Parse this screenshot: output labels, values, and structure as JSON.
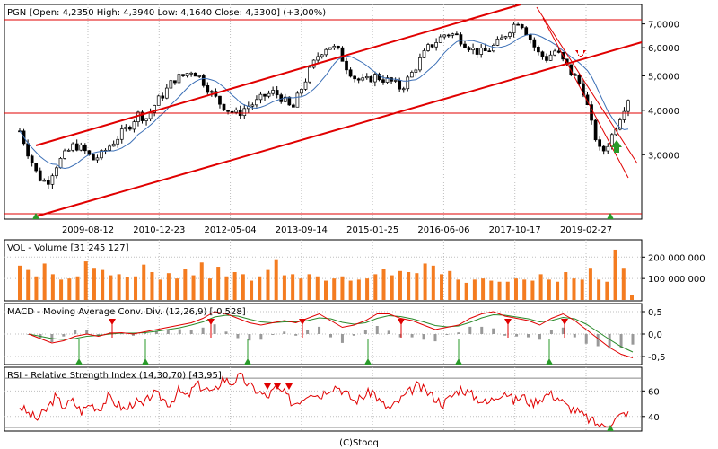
{
  "footer": "(C)Stooq",
  "colors": {
    "price_up": "#ffffff",
    "price_down": "#000000",
    "channel": "#e00000",
    "ma": "#3b6fb6",
    "volume": "#f47c20",
    "macd_line": "#e00000",
    "signal_line": "#2a8a2a",
    "hist": "#999999",
    "rsi": "#e00000",
    "buy_marker": "#2a9a2a",
    "sell_marker": "#e00000",
    "grid": "#bfbfbf"
  },
  "chart_data": [
    {
      "type": "candlestick",
      "title": "PGN [Open: 4,2350  High: 4,3940  Low: 4,1640  Close: 4,3300] (+3,00%)",
      "x_ticks": [
        "2009-08-12",
        "2010-12-23",
        "2012-05-04",
        "2013-09-14",
        "2015-01-25",
        "2016-06-06",
        "2017-10-17",
        "2019-02-27"
      ],
      "y_ticks": [
        "7,0000",
        "6,0000",
        "5,0000",
        "4,0000",
        "3,0000"
      ],
      "y_scale": "log",
      "ylim": [
        2.0,
        7.8
      ],
      "close_series": [
        3.5,
        3.0,
        2.6,
        2.5,
        2.8,
        3.0,
        3.2,
        3.1,
        2.9,
        3.0,
        3.2,
        3.4,
        3.6,
        3.9,
        3.8,
        4.2,
        4.5,
        4.9,
        5.0,
        5.2,
        4.9,
        4.5,
        4.2,
        4.0,
        3.9,
        4.1,
        4.2,
        4.4,
        4.5,
        4.3,
        4.0,
        4.6,
        5.2,
        5.8,
        6.1,
        5.9,
        5.3,
        4.9,
        4.8,
        5.0,
        4.9,
        4.8,
        4.6,
        5.0,
        5.5,
        6.0,
        6.3,
        6.6,
        6.5,
        6.2,
        5.9,
        5.8,
        6.0,
        6.3,
        6.8,
        7.2,
        6.5,
        5.8,
        5.6,
        5.9,
        5.4,
        5.0,
        4.6,
        3.6,
        3.0,
        3.3,
        3.8,
        4.33
      ],
      "overlays": [
        "upper channel line",
        "lower channel line",
        "horizontal resistance ~7.2",
        "horizontal support ~4.2",
        "horizontal support ~2.0",
        "steep downtrend lines",
        "moving average"
      ]
    },
    {
      "type": "bar",
      "title": "VOL - Volume [31 245 127]",
      "y_ticks": [
        "200 000 000",
        "100 000 000"
      ],
      "ylim": [
        0,
        260000000
      ],
      "values": [
        160,
        140,
        110,
        170,
        120,
        95,
        100,
        110,
        180,
        150,
        140,
        115,
        120,
        105,
        110,
        165,
        130,
        95,
        125,
        100,
        145,
        115,
        175,
        100,
        155,
        110,
        130,
        120,
        90,
        110,
        140,
        190,
        115,
        120,
        100,
        120,
        110,
        90,
        100,
        110,
        90,
        95,
        100,
        120,
        145,
        115,
        135,
        130,
        125,
        170,
        160,
        120,
        135,
        95,
        80,
        95,
        100,
        90,
        85,
        85,
        100,
        95,
        90,
        120,
        95,
        85,
        130,
        100,
        95,
        150,
        95,
        85,
        235,
        150,
        25
      ]
    },
    {
      "type": "line",
      "title": "MACD - Moving Average Conv. Div. (12,26,9) [-0,528]",
      "y_ticks": [
        "0,5",
        "0,0",
        "-0,5"
      ],
      "ylim": [
        -0.6,
        0.6
      ],
      "macd": [
        0.0,
        -0.1,
        -0.2,
        -0.15,
        -0.05,
        0.0,
        -0.05,
        0.02,
        0.03,
        0.0,
        0.05,
        0.1,
        0.15,
        0.2,
        0.25,
        0.35,
        0.5,
        0.45,
        0.35,
        0.25,
        0.2,
        0.25,
        0.3,
        0.25,
        0.35,
        0.45,
        0.3,
        0.15,
        0.2,
        0.3,
        0.45,
        0.45,
        0.35,
        0.3,
        0.2,
        0.1,
        0.15,
        0.2,
        0.35,
        0.45,
        0.5,
        0.4,
        0.35,
        0.3,
        0.2,
        0.35,
        0.45,
        0.3,
        0.1,
        -0.1,
        -0.3,
        -0.45,
        -0.53
      ],
      "signal": [
        0.0,
        -0.05,
        -0.1,
        -0.12,
        -0.1,
        -0.05,
        -0.03,
        0.0,
        0.02,
        0.02,
        0.03,
        0.06,
        0.1,
        0.14,
        0.2,
        0.27,
        0.38,
        0.42,
        0.4,
        0.33,
        0.27,
        0.25,
        0.27,
        0.27,
        0.3,
        0.36,
        0.34,
        0.26,
        0.22,
        0.25,
        0.35,
        0.41,
        0.39,
        0.34,
        0.27,
        0.19,
        0.16,
        0.18,
        0.26,
        0.36,
        0.43,
        0.42,
        0.38,
        0.34,
        0.27,
        0.3,
        0.37,
        0.34,
        0.22,
        0.05,
        -0.12,
        -0.28,
        -0.4
      ]
    },
    {
      "type": "line",
      "title": "RSI - Relative Strength Index (14,30,70) [43,95]",
      "y_ticks": [
        "60",
        "40"
      ],
      "ylim": [
        30,
        75
      ],
      "values": [
        48,
        42,
        38,
        45,
        55,
        48,
        52,
        44,
        50,
        46,
        55,
        50,
        45,
        52,
        48,
        58,
        55,
        50,
        60,
        55,
        65,
        62,
        58,
        70,
        66,
        72,
        64,
        60,
        55,
        62,
        58,
        50,
        54,
        60,
        56,
        62,
        64,
        58,
        52,
        56,
        60,
        50,
        46,
        52,
        58,
        64,
        60,
        55,
        50,
        56,
        62,
        58,
        54,
        50,
        56,
        60,
        52,
        56,
        50,
        54,
        58,
        55,
        48,
        45,
        40,
        36,
        32,
        35,
        40,
        43.95
      ]
    }
  ]
}
